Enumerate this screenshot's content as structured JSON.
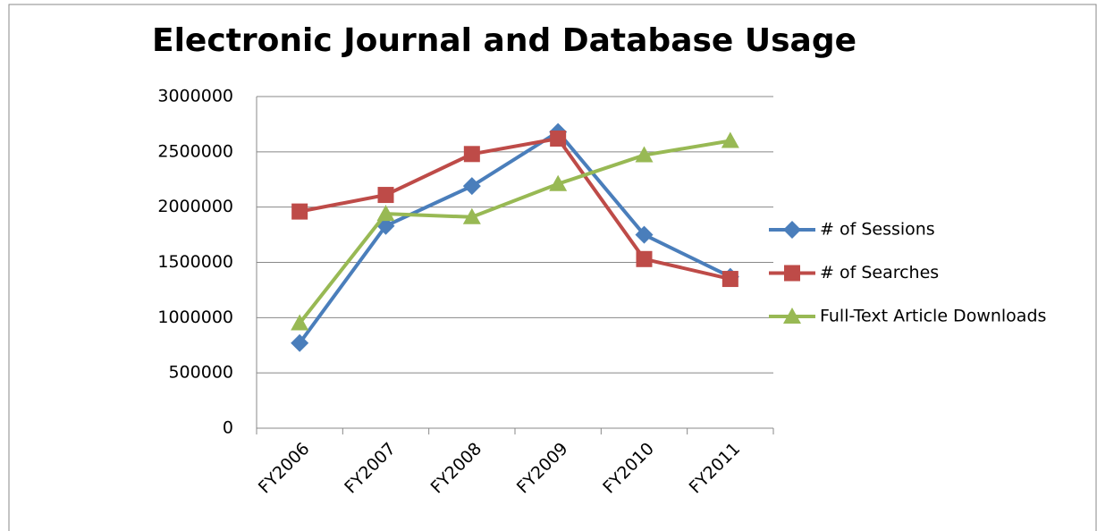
{
  "chart_data": {
    "type": "line",
    "title": "Electronic Journal and Database Usage",
    "categories": [
      "FY2006",
      "FY2007",
      "FY2008",
      "FY2009",
      "FY2010",
      "FY2011"
    ],
    "series": [
      {
        "name": "# of Sessions",
        "color": "#4a7ebb",
        "marker": "diamond",
        "values": [
          770000,
          1830000,
          2190000,
          2680000,
          1750000,
          1370000
        ]
      },
      {
        "name": "# of Searches",
        "color": "#be4b48",
        "marker": "square",
        "values": [
          1960000,
          2110000,
          2480000,
          2620000,
          1530000,
          1350000
        ]
      },
      {
        "name": "Full-Text Article Downloads",
        "color": "#98b954",
        "marker": "triangle",
        "values": [
          950000,
          1940000,
          1910000,
          2210000,
          2470000,
          2600000
        ]
      }
    ],
    "ylim": [
      0,
      3000000
    ],
    "yticks": [
      0,
      500000,
      1000000,
      1500000,
      2000000,
      2500000,
      3000000
    ],
    "grid": true,
    "legend": "right"
  }
}
